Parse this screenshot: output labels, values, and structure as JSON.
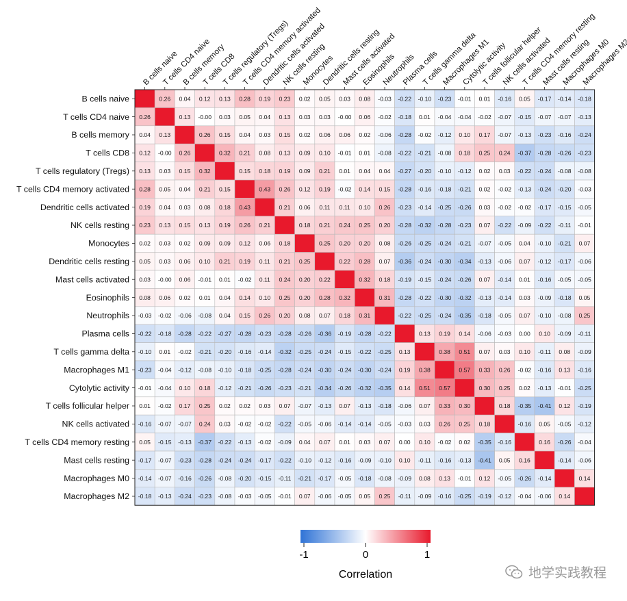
{
  "chart_data": {
    "type": "heatmap",
    "title": "",
    "xlabel": "",
    "ylabel": "",
    "labels": [
      "B cells naive",
      "T cells CD4 naive",
      "B cells memory",
      "T cells CD8",
      "T cells regulatory (Tregs)",
      "T cells CD4 memory activated",
      "Dendritic cells activated",
      "NK cells resting",
      "Monocytes",
      "Dendritic cells resting",
      "Mast cells activated",
      "Eosinophils",
      "Neutrophils",
      "Plasma cells",
      "T cells gamma delta",
      "Macrophages M1",
      "Cytolytic activity",
      "T cells follicular helper",
      "NK cells activated",
      "T cells CD4 memory resting",
      "Mast cells resting",
      "Macrophages M0",
      "Macrophages M2"
    ],
    "matrix": [
      [
        null,
        0.26,
        0.04,
        0.12,
        0.13,
        0.28,
        0.19,
        0.23,
        0.02,
        0.05,
        0.03,
        0.08,
        -0.03,
        -0.22,
        -0.1,
        -0.23,
        -0.01,
        0.01,
        -0.16,
        0.05,
        -0.17,
        -0.14,
        -0.18
      ],
      [
        0.26,
        null,
        0.13,
        -0.0,
        0.03,
        0.05,
        0.04,
        0.13,
        0.03,
        0.03,
        -0.0,
        0.06,
        -0.02,
        -0.18,
        0.01,
        -0.04,
        -0.04,
        -0.02,
        -0.07,
        -0.15,
        -0.07,
        -0.07,
        -0.13
      ],
      [
        0.04,
        0.13,
        null,
        0.26,
        0.15,
        0.04,
        0.03,
        0.15,
        0.02,
        0.06,
        0.06,
        0.02,
        -0.06,
        -0.28,
        -0.02,
        -0.12,
        0.1,
        0.17,
        -0.07,
        -0.13,
        -0.23,
        -0.16,
        -0.24
      ],
      [
        0.12,
        -0.0,
        0.26,
        null,
        0.32,
        0.21,
        0.08,
        0.13,
        0.09,
        0.1,
        -0.01,
        0.01,
        -0.08,
        -0.22,
        -0.21,
        -0.08,
        0.18,
        0.25,
        0.24,
        -0.37,
        -0.28,
        -0.26,
        -0.23
      ],
      [
        0.13,
        0.03,
        0.15,
        0.32,
        null,
        0.15,
        0.18,
        0.19,
        0.09,
        0.21,
        0.01,
        0.04,
        0.04,
        -0.27,
        -0.2,
        -0.1,
        -0.12,
        0.02,
        0.03,
        -0.22,
        -0.24,
        -0.08,
        -0.08
      ],
      [
        0.28,
        0.05,
        0.04,
        0.21,
        0.15,
        null,
        0.43,
        0.26,
        0.12,
        0.19,
        -0.02,
        0.14,
        0.15,
        -0.28,
        -0.16,
        -0.18,
        -0.21,
        0.02,
        -0.02,
        -0.13,
        -0.24,
        -0.2,
        -0.03
      ],
      [
        0.19,
        0.04,
        0.03,
        0.08,
        0.18,
        0.43,
        null,
        0.21,
        0.06,
        0.11,
        0.11,
        0.1,
        0.26,
        -0.23,
        -0.14,
        -0.25,
        -0.26,
        0.03,
        -0.02,
        -0.02,
        -0.17,
        -0.15,
        -0.05
      ],
      [
        0.23,
        0.13,
        0.15,
        0.13,
        0.19,
        0.26,
        0.21,
        null,
        0.18,
        0.21,
        0.24,
        0.25,
        0.2,
        -0.28,
        -0.32,
        -0.28,
        -0.23,
        0.07,
        -0.22,
        -0.09,
        -0.22,
        -0.11,
        -0.01
      ],
      [
        0.02,
        0.03,
        0.02,
        0.09,
        0.09,
        0.12,
        0.06,
        0.18,
        null,
        0.25,
        0.2,
        0.2,
        0.08,
        -0.26,
        -0.25,
        -0.24,
        -0.21,
        -0.07,
        -0.05,
        0.04,
        -0.1,
        -0.21,
        0.07
      ],
      [
        0.05,
        0.03,
        0.06,
        0.1,
        0.21,
        0.19,
        0.11,
        0.21,
        0.25,
        null,
        0.22,
        0.28,
        0.07,
        -0.36,
        -0.24,
        -0.3,
        -0.34,
        -0.13,
        -0.06,
        0.07,
        -0.12,
        -0.17,
        -0.06
      ],
      [
        0.03,
        -0.0,
        0.06,
        -0.01,
        0.01,
        -0.02,
        0.11,
        0.24,
        0.2,
        0.22,
        null,
        0.32,
        0.18,
        -0.19,
        -0.15,
        -0.24,
        -0.26,
        0.07,
        -0.14,
        0.01,
        -0.16,
        -0.05,
        -0.05
      ],
      [
        0.08,
        0.06,
        0.02,
        0.01,
        0.04,
        0.14,
        0.1,
        0.25,
        0.2,
        0.28,
        0.32,
        null,
        0.31,
        -0.28,
        -0.22,
        -0.3,
        -0.32,
        -0.13,
        -0.14,
        0.03,
        -0.09,
        -0.18,
        0.05
      ],
      [
        -0.03,
        -0.02,
        -0.06,
        -0.08,
        0.04,
        0.15,
        0.26,
        0.2,
        0.08,
        0.07,
        0.18,
        0.31,
        null,
        -0.22,
        -0.25,
        -0.24,
        -0.35,
        -0.18,
        -0.05,
        0.07,
        -0.1,
        -0.08,
        0.25
      ],
      [
        -0.22,
        -0.18,
        -0.28,
        -0.22,
        -0.27,
        -0.28,
        -0.23,
        -0.28,
        -0.26,
        -0.36,
        -0.19,
        -0.28,
        -0.22,
        null,
        0.13,
        0.19,
        0.14,
        -0.06,
        -0.03,
        0.0,
        0.1,
        -0.09,
        -0.11
      ],
      [
        -0.1,
        0.01,
        -0.02,
        -0.21,
        -0.2,
        -0.16,
        -0.14,
        -0.32,
        -0.25,
        -0.24,
        -0.15,
        -0.22,
        -0.25,
        0.13,
        null,
        0.38,
        0.51,
        0.07,
        0.03,
        0.1,
        -0.11,
        0.08,
        -0.09
      ],
      [
        -0.23,
        -0.04,
        -0.12,
        -0.08,
        -0.1,
        -0.18,
        -0.25,
        -0.28,
        -0.24,
        -0.3,
        -0.24,
        -0.3,
        -0.24,
        0.19,
        0.38,
        null,
        0.57,
        0.33,
        0.26,
        -0.02,
        -0.16,
        0.13,
        -0.16
      ],
      [
        -0.01,
        -0.04,
        0.1,
        0.18,
        -0.12,
        -0.21,
        -0.26,
        -0.23,
        -0.21,
        -0.34,
        -0.26,
        -0.32,
        -0.35,
        0.14,
        0.51,
        0.57,
        null,
        0.3,
        0.25,
        0.02,
        -0.13,
        -0.01,
        -0.25
      ],
      [
        0.01,
        -0.02,
        0.17,
        0.25,
        0.02,
        0.02,
        0.03,
        0.07,
        -0.07,
        -0.13,
        0.07,
        -0.13,
        -0.18,
        -0.06,
        0.07,
        0.33,
        0.3,
        null,
        0.18,
        -0.35,
        -0.41,
        0.12,
        -0.19
      ],
      [
        -0.16,
        -0.07,
        -0.07,
        0.24,
        0.03,
        -0.02,
        -0.02,
        -0.22,
        -0.05,
        -0.06,
        -0.14,
        -0.14,
        -0.05,
        -0.03,
        0.03,
        0.26,
        0.25,
        0.18,
        null,
        -0.16,
        0.05,
        -0.05,
        -0.12
      ],
      [
        0.05,
        -0.15,
        -0.13,
        -0.37,
        -0.22,
        -0.13,
        -0.02,
        -0.09,
        0.04,
        0.07,
        0.01,
        0.03,
        0.07,
        0.0,
        0.1,
        -0.02,
        0.02,
        -0.35,
        -0.16,
        null,
        0.16,
        -0.26,
        -0.04
      ],
      [
        -0.17,
        -0.07,
        -0.23,
        -0.28,
        -0.24,
        -0.24,
        -0.17,
        -0.22,
        -0.1,
        -0.12,
        -0.16,
        -0.09,
        -0.1,
        0.1,
        -0.11,
        -0.16,
        -0.13,
        -0.41,
        0.05,
        0.16,
        null,
        -0.14,
        -0.06
      ],
      [
        -0.14,
        -0.07,
        -0.16,
        -0.26,
        -0.08,
        -0.2,
        -0.15,
        -0.11,
        -0.21,
        -0.17,
        -0.05,
        -0.18,
        -0.08,
        -0.09,
        0.08,
        0.13,
        -0.01,
        0.12,
        -0.05,
        -0.26,
        -0.14,
        null,
        0.14
      ],
      [
        -0.18,
        -0.13,
        -0.24,
        -0.23,
        -0.08,
        -0.03,
        -0.05,
        -0.01,
        0.07,
        -0.06,
        -0.05,
        0.05,
        0.25,
        -0.11,
        -0.09,
        -0.16,
        -0.25,
        -0.19,
        -0.12,
        -0.04,
        -0.06,
        0.14,
        null
      ]
    ],
    "diagonal_value": 1,
    "color_scale": {
      "min": -1,
      "mid": 0,
      "max": 1,
      "low_color": "#2f73d6",
      "mid_color": "#ffffff",
      "high_color": "#e8192c",
      "ticks": [
        "-1",
        "0",
        "1"
      ],
      "title": "Correlation"
    },
    "grid": true,
    "legend_placement": "bottom"
  },
  "watermark": {
    "text": "地学实践教程",
    "icon": "wechat-icon"
  }
}
